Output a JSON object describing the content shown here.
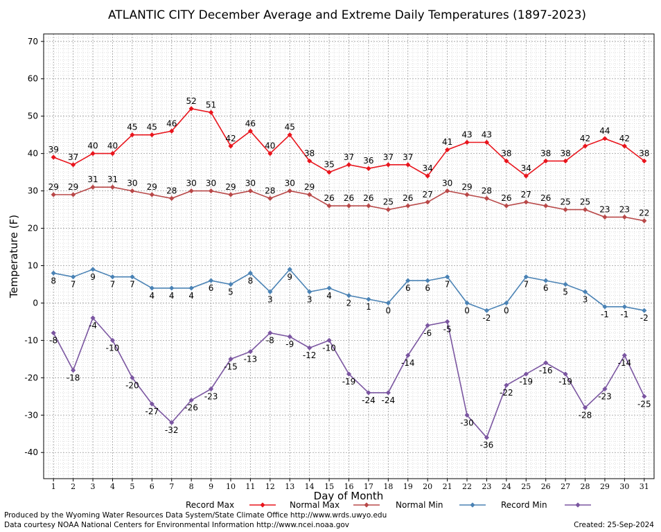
{
  "chart_data": {
    "type": "line",
    "title": "ATLANTIC CITY December Average and Extreme Daily Temperatures (1897-2023)",
    "xlabel": "Day of Month",
    "ylabel": "Temperature (F)",
    "x": [
      1,
      2,
      3,
      4,
      5,
      6,
      7,
      8,
      9,
      10,
      11,
      12,
      13,
      14,
      15,
      16,
      17,
      18,
      19,
      20,
      21,
      22,
      23,
      24,
      25,
      26,
      27,
      28,
      29,
      30,
      31
    ],
    "xlim": [
      0.5,
      31.5
    ],
    "ylim": [
      -47,
      72
    ],
    "yticks": [
      -40,
      -30,
      -20,
      -10,
      0,
      10,
      20,
      30,
      40,
      50,
      60,
      70
    ],
    "grid": true,
    "legend_position": "bottom",
    "series": [
      {
        "name": "Record Max",
        "color": "#e8141c",
        "values": [
          39,
          37,
          40,
          40,
          45,
          45,
          46,
          52,
          51,
          42,
          46,
          40,
          45,
          38,
          35,
          37,
          36,
          37,
          37,
          34,
          41,
          43,
          43,
          38,
          34,
          38,
          38,
          42,
          44,
          42,
          38
        ]
      },
      {
        "name": "Normal Max",
        "color": "#b84848",
        "values": [
          29,
          29,
          31,
          31,
          30,
          29,
          28,
          30,
          30,
          29,
          30,
          28,
          30,
          29,
          26,
          26,
          26,
          25,
          26,
          27,
          30,
          29,
          28,
          26,
          27,
          26,
          25,
          25,
          23,
          23,
          22
        ]
      },
      {
        "name": "Normal Min",
        "color": "#4a82b4",
        "values": [
          8,
          7,
          9,
          7,
          7,
          4,
          4,
          4,
          6,
          5,
          8,
          3,
          9,
          3,
          4,
          2,
          1,
          0,
          6,
          6,
          7,
          0,
          -2,
          0,
          7,
          6,
          5,
          3,
          -1,
          -1,
          -2
        ]
      },
      {
        "name": "Record Min",
        "color": "#7a55a0",
        "values": [
          -8,
          -18,
          -4,
          -10,
          -20,
          -27,
          -32,
          -26,
          -23,
          -15,
          -13,
          -8,
          -9,
          -12,
          -10,
          -19,
          -24,
          -24,
          -14,
          -6,
          -5,
          -30,
          -36,
          -22,
          -19,
          -16,
          -19,
          -28,
          -23,
          -14,
          -25
        ]
      }
    ]
  },
  "footer": {
    "produced": "Produced by the Wyoming Water Resources Data System/State Climate Office http://www.wrds.uwyo.edu",
    "courtesy": "Data courtesy NOAA National Centers for Environmental Information http://www.ncei.noaa.gov",
    "created": "Created:  25-Sep-2024"
  }
}
